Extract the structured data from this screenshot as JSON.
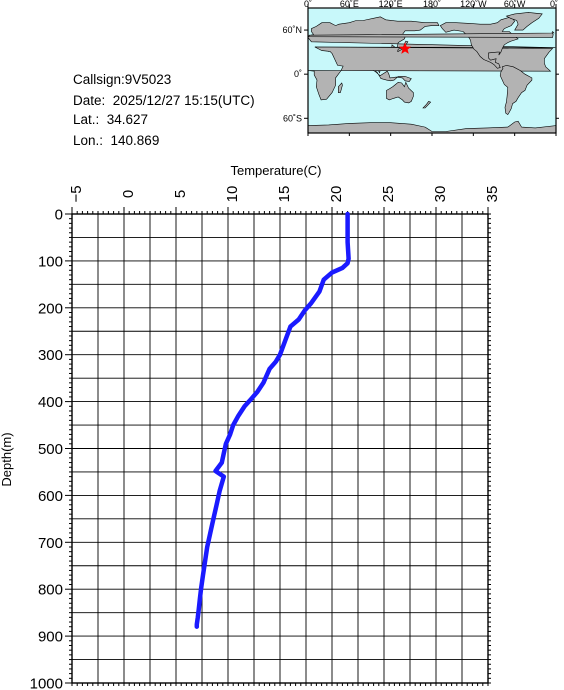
{
  "header": {
    "callsign": "Callsign:9V5023",
    "date": "Date:  2025/12/27 15:15(UTC)",
    "lat": "Lat.:  34.627",
    "lon": "Lon.:  140.869"
  },
  "map": {
    "lon_labels": [
      "0˚",
      "60˚E",
      "120˚E",
      "180˚",
      "120˚W",
      "60˚W",
      "0˚"
    ],
    "lon_values": [
      0,
      60,
      120,
      180,
      240,
      300,
      360
    ],
    "lat_labels": [
      "60˚N",
      "0˚",
      "60˚S"
    ],
    "lat_values": [
      60,
      0,
      -60
    ],
    "lat_range": [
      -80,
      90
    ],
    "ocean_color": "#c8f8fa",
    "land_color": "#b3b3b3",
    "marker": {
      "lat": 34.627,
      "lon": 140.869,
      "color": "#ff0000",
      "icon": "star-icon"
    }
  },
  "chart_data": {
    "type": "line",
    "xlabel": "Temperature(C)",
    "ylabel": "Depth(m)",
    "xlim": [
      -5,
      35
    ],
    "ylim": [
      0,
      1000
    ],
    "y_inverted": true,
    "x_axis_position": "top",
    "x_ticks": [
      -5,
      0,
      5,
      10,
      15,
      20,
      25,
      30,
      35
    ],
    "y_ticks": [
      0,
      100,
      200,
      300,
      400,
      500,
      600,
      700,
      800,
      900,
      1000
    ],
    "grid": true,
    "line_color": "#1a1aff",
    "series": [
      {
        "x": [
          21.5,
          21.5,
          21.5,
          21.6,
          21.5,
          21.0,
          20.0,
          19.2,
          18.8,
          18.0,
          17.4,
          16.8,
          16.0,
          15.5,
          15.0,
          14.6,
          14.0,
          13.4,
          12.8,
          12.2,
          11.6,
          11.0,
          10.5,
          10.2,
          9.8,
          9.6,
          9.4,
          8.8,
          9.6,
          9.2,
          8.9,
          8.6,
          8.3,
          8.0,
          7.8,
          7.6,
          7.4,
          7.3,
          7.2,
          7.1,
          7.0,
          7.0
        ],
        "y": [
          0,
          20,
          60,
          95,
          105,
          115,
          125,
          140,
          165,
          190,
          205,
          225,
          240,
          270,
          300,
          315,
          330,
          360,
          380,
          395,
          410,
          430,
          450,
          470,
          490,
          510,
          530,
          548,
          560,
          590,
          620,
          650,
          680,
          710,
          740,
          770,
          800,
          820,
          840,
          860,
          875,
          880
        ]
      }
    ]
  }
}
